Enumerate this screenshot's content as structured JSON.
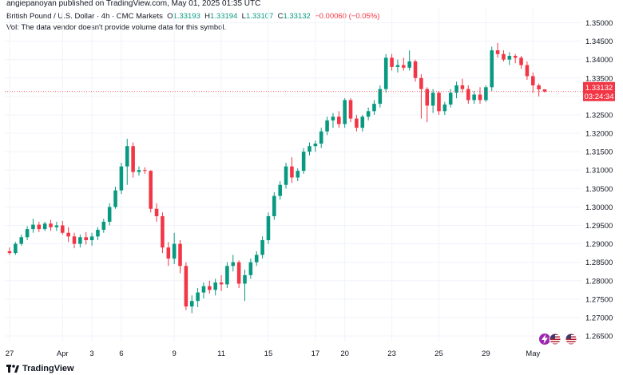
{
  "header": {
    "published": "angiepanoyan published on TradingView.com, May 01, 2025 01:35 UTC"
  },
  "legend": {
    "symbol": "British Pound / U.S. Dollar · 4h · CMC Markets",
    "o_label": "O",
    "o_value": "1.33193",
    "h_label": "H",
    "h_value": "1.33194",
    "l_label": "L",
    "l_value": "1.33107",
    "c_label": "C",
    "c_value": "1.33132",
    "change": "−0.00060 (−0.05%)",
    "volume_note": "Vol: The data vendor doesn't provide volume data for this symbol."
  },
  "price_badge": {
    "price": "1.33132",
    "countdown": "03:24:34"
  },
  "footer": {
    "brand": "TradingView"
  },
  "colors": {
    "up": "#089981",
    "down": "#f23645",
    "grid": "#f0f3fa",
    "axis_text": "#131722",
    "price_line": "#f23645"
  },
  "icons": [
    "tradingview-logo-icon",
    "lightning-icon",
    "us-flag-icon",
    "us-flag-icon-2"
  ],
  "chart_data": {
    "type": "candlestick",
    "title": "British Pound / U.S. Dollar · 4h · CMC Markets",
    "timeframe": "4h",
    "ylim": [
      1.2635,
      1.354
    ],
    "y_ticks": [
      "1.35000",
      "1.34500",
      "1.34000",
      "1.33500",
      "1.33000",
      "1.32500",
      "1.32000",
      "1.31500",
      "1.31000",
      "1.30500",
      "1.30000",
      "1.29500",
      "1.29000",
      "1.28500",
      "1.28000",
      "1.27500",
      "1.27000",
      "1.26500"
    ],
    "x_ticks": [
      {
        "label": "27",
        "index": 0
      },
      {
        "label": "Apr",
        "index": 9
      },
      {
        "label": "3",
        "index": 14
      },
      {
        "label": "6",
        "index": 19
      },
      {
        "label": "9",
        "index": 28
      },
      {
        "label": "11",
        "index": 36
      },
      {
        "label": "15",
        "index": 44
      },
      {
        "label": "17",
        "index": 52
      },
      {
        "label": "20",
        "index": 57
      },
      {
        "label": "23",
        "index": 65
      },
      {
        "label": "25",
        "index": 73
      },
      {
        "label": "29",
        "index": 81
      },
      {
        "label": "May",
        "index": 89
      }
    ],
    "last_price": 1.33132,
    "candles": [
      [
        1.288,
        1.289,
        1.287,
        1.2875
      ],
      [
        1.2875,
        1.2905,
        1.287,
        1.29
      ],
      [
        1.29,
        1.2925,
        1.2895,
        1.2918
      ],
      [
        1.2918,
        1.2948,
        1.291,
        1.294
      ],
      [
        1.294,
        1.2968,
        1.293,
        1.2952
      ],
      [
        1.2952,
        1.296,
        1.2932,
        1.294
      ],
      [
        1.294,
        1.296,
        1.2935,
        1.2955
      ],
      [
        1.2955,
        1.2965,
        1.2935,
        1.2945
      ],
      [
        1.2945,
        1.296,
        1.2935,
        1.295
      ],
      [
        1.295,
        1.2962,
        1.2925,
        1.293
      ],
      [
        1.293,
        1.2945,
        1.2905,
        1.292
      ],
      [
        1.292,
        1.293,
        1.2888,
        1.29
      ],
      [
        1.29,
        1.2925,
        1.289,
        1.2918
      ],
      [
        1.2918,
        1.2932,
        1.2898,
        1.291
      ],
      [
        1.291,
        1.293,
        1.2895,
        1.292
      ],
      [
        1.292,
        1.2945,
        1.291,
        1.2938
      ],
      [
        1.2938,
        1.2968,
        1.293,
        1.296
      ],
      [
        1.296,
        1.301,
        1.295,
        1.3
      ],
      [
        1.3,
        1.3055,
        1.2995,
        1.3045
      ],
      [
        1.3045,
        1.312,
        1.3035,
        1.311
      ],
      [
        1.311,
        1.3185,
        1.306,
        1.3165
      ],
      [
        1.3165,
        1.3175,
        1.308,
        1.3095
      ],
      [
        1.3095,
        1.311,
        1.3085,
        1.31
      ],
      [
        1.31,
        1.3108,
        1.309,
        1.3098
      ],
      [
        1.3098,
        1.31,
        1.2985,
        1.2995
      ],
      [
        1.2995,
        1.301,
        1.296,
        1.2975
      ],
      [
        1.2975,
        1.2985,
        1.2875,
        1.289
      ],
      [
        1.289,
        1.2905,
        1.284,
        1.286
      ],
      [
        1.286,
        1.293,
        1.2845,
        1.29
      ],
      [
        1.29,
        1.291,
        1.282,
        1.284
      ],
      [
        1.284,
        1.285,
        1.272,
        1.273
      ],
      [
        1.273,
        1.276,
        1.2712,
        1.2745
      ],
      [
        1.2745,
        1.278,
        1.2728,
        1.2768
      ],
      [
        1.2768,
        1.2795,
        1.2752,
        1.2785
      ],
      [
        1.2785,
        1.28,
        1.2765,
        1.2775
      ],
      [
        1.2775,
        1.2805,
        1.276,
        1.2795
      ],
      [
        1.2795,
        1.2815,
        1.2772,
        1.279
      ],
      [
        1.279,
        1.285,
        1.278,
        1.284
      ],
      [
        1.284,
        1.287,
        1.2825,
        1.285
      ],
      [
        1.285,
        1.2855,
        1.278,
        1.2792
      ],
      [
        1.2792,
        1.283,
        1.2745,
        1.2815
      ],
      [
        1.2815,
        1.286,
        1.2805,
        1.285
      ],
      [
        1.285,
        1.288,
        1.284,
        1.287
      ],
      [
        1.287,
        1.292,
        1.286,
        1.291
      ],
      [
        1.291,
        1.2985,
        1.29,
        1.2975
      ],
      [
        1.2975,
        1.304,
        1.2965,
        1.303
      ],
      [
        1.303,
        1.307,
        1.302,
        1.306
      ],
      [
        1.306,
        1.312,
        1.305,
        1.311
      ],
      [
        1.311,
        1.3135,
        1.3065,
        1.308
      ],
      [
        1.308,
        1.3105,
        1.307,
        1.3098
      ],
      [
        1.3098,
        1.316,
        1.309,
        1.315
      ],
      [
        1.315,
        1.3175,
        1.314,
        1.3165
      ],
      [
        1.3165,
        1.318,
        1.315,
        1.3172
      ],
      [
        1.3172,
        1.3215,
        1.316,
        1.3205
      ],
      [
        1.3205,
        1.3245,
        1.3195,
        1.3235
      ],
      [
        1.3235,
        1.3255,
        1.3215,
        1.3245
      ],
      [
        1.3245,
        1.326,
        1.3215,
        1.3225
      ],
      [
        1.3225,
        1.3295,
        1.3215,
        1.329
      ],
      [
        1.329,
        1.3295,
        1.323,
        1.324
      ],
      [
        1.324,
        1.325,
        1.3205,
        1.3215
      ],
      [
        1.3215,
        1.325,
        1.3205,
        1.3245
      ],
      [
        1.3245,
        1.327,
        1.3235,
        1.326
      ],
      [
        1.326,
        1.329,
        1.325,
        1.328
      ],
      [
        1.328,
        1.333,
        1.327,
        1.332
      ],
      [
        1.332,
        1.3415,
        1.331,
        1.3405
      ],
      [
        1.3405,
        1.3415,
        1.337,
        1.338
      ],
      [
        1.338,
        1.34,
        1.3365,
        1.3385
      ],
      [
        1.3385,
        1.3405,
        1.337,
        1.3378
      ],
      [
        1.3378,
        1.3425,
        1.337,
        1.3395
      ],
      [
        1.3395,
        1.34,
        1.334,
        1.335
      ],
      [
        1.335,
        1.336,
        1.324,
        1.332
      ],
      [
        1.332,
        1.3325,
        1.323,
        1.3275
      ],
      [
        1.3275,
        1.332,
        1.3255,
        1.331
      ],
      [
        1.331,
        1.3315,
        1.325,
        1.326
      ],
      [
        1.326,
        1.3285,
        1.325,
        1.3278
      ],
      [
        1.3278,
        1.332,
        1.327,
        1.331
      ],
      [
        1.331,
        1.334,
        1.3295,
        1.333
      ],
      [
        1.333,
        1.3348,
        1.331,
        1.332
      ],
      [
        1.332,
        1.333,
        1.328,
        1.329
      ],
      [
        1.329,
        1.3315,
        1.328,
        1.3305
      ],
      [
        1.3305,
        1.3325,
        1.328,
        1.329
      ],
      [
        1.329,
        1.333,
        1.3285,
        1.3325
      ],
      [
        1.3325,
        1.3435,
        1.3315,
        1.3425
      ],
      [
        1.3425,
        1.3445,
        1.3405,
        1.3415
      ],
      [
        1.3415,
        1.3425,
        1.3395,
        1.34
      ],
      [
        1.34,
        1.342,
        1.3385,
        1.341
      ],
      [
        1.341,
        1.3415,
        1.339,
        1.3405
      ],
      [
        1.3405,
        1.341,
        1.3375,
        1.3385
      ],
      [
        1.3385,
        1.3395,
        1.3345,
        1.3355
      ],
      [
        1.3355,
        1.3365,
        1.331,
        1.333
      ],
      [
        1.333,
        1.3335,
        1.33,
        1.3319
      ],
      [
        1.33193,
        1.33194,
        1.33107,
        1.33132
      ]
    ]
  }
}
